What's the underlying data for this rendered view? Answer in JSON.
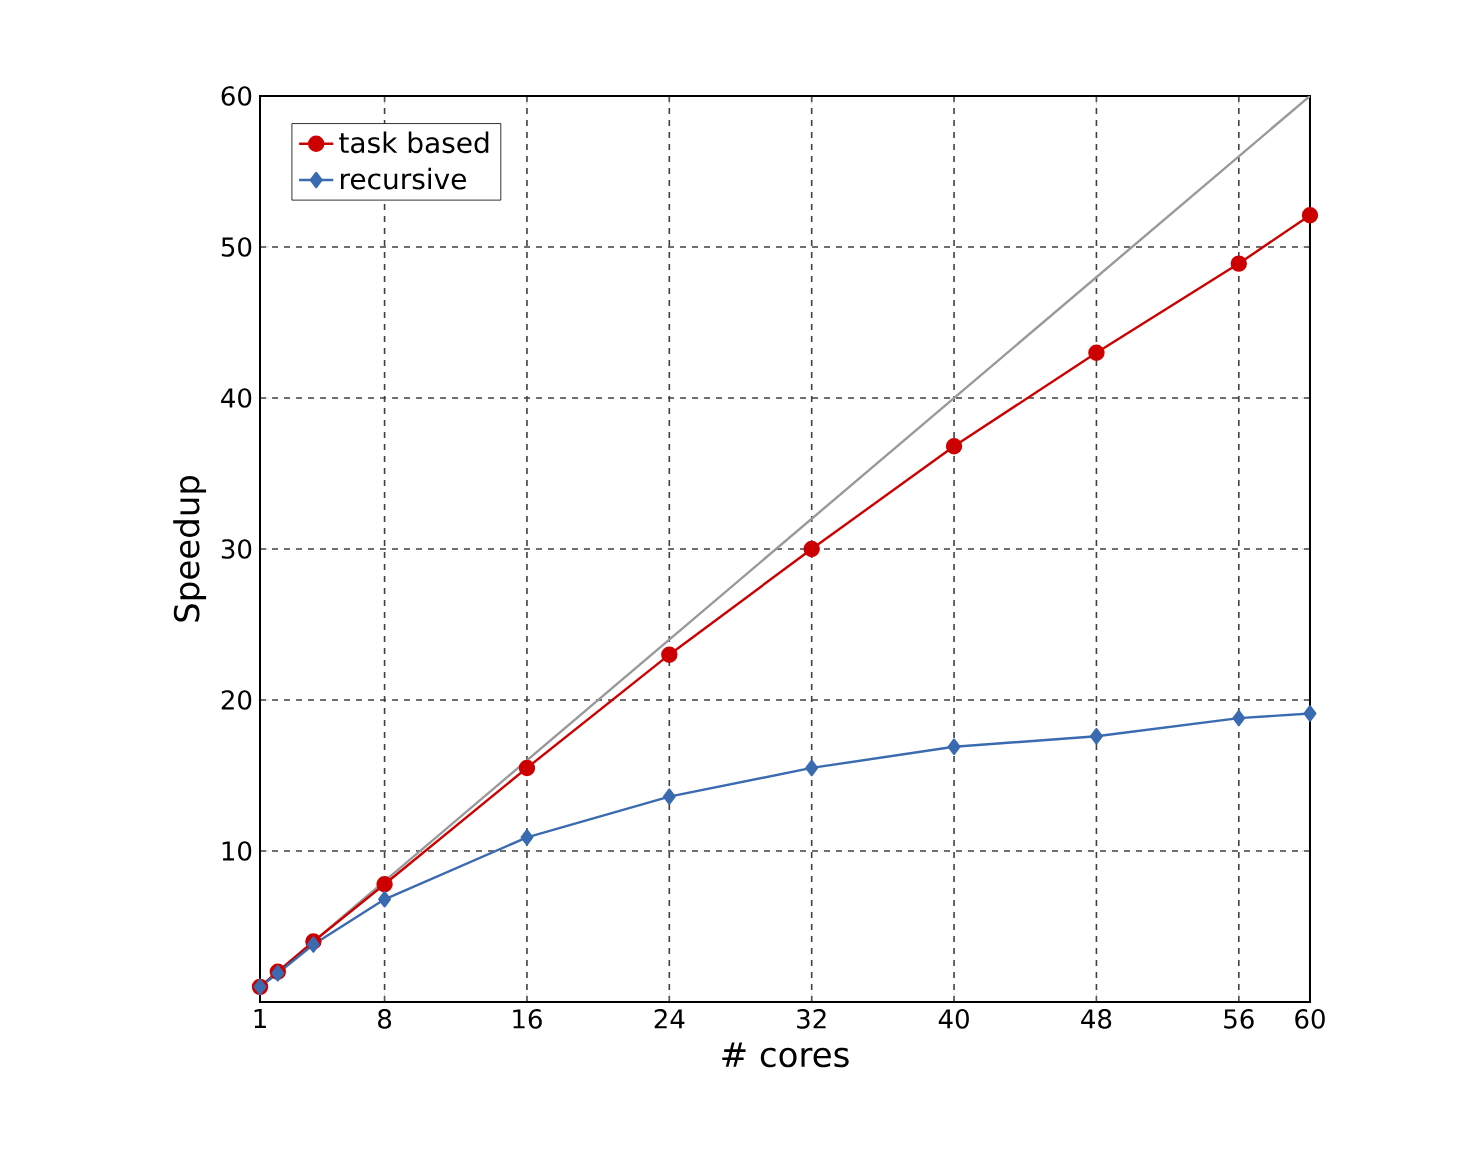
{
  "chart_data": {
    "type": "line",
    "xlabel": "# cores",
    "ylabel": "Speedup",
    "xlim": [
      1,
      60
    ],
    "ylim": [
      0,
      60
    ],
    "xticks": [
      1,
      8,
      16,
      24,
      32,
      40,
      48,
      56,
      60
    ],
    "yticks": [
      {
        "value": 0,
        "label": null
      },
      10,
      20,
      30,
      40,
      50,
      60
    ],
    "grid": true,
    "legend": "top left",
    "series": [
      {
        "x": [
          1,
          60
        ],
        "values": [
          1,
          60
        ],
        "color": "#999999",
        "marker": "none"
      },
      {
        "name": "task based",
        "color": "#cc0000",
        "marker": "circle",
        "x": [
          1,
          2,
          4,
          8,
          16,
          24,
          32,
          40,
          48,
          56,
          60
        ],
        "values": [
          1,
          2,
          4,
          7.8,
          15.5,
          23,
          30,
          36.8,
          43,
          48.9,
          52.1
        ]
      },
      {
        "name": "recursive",
        "color": "#3a6bb0",
        "marker": "diamond",
        "x": [
          1,
          2,
          4,
          8,
          16,
          24,
          32,
          40,
          48,
          56,
          60
        ],
        "values": [
          1,
          1.9,
          3.8,
          6.8,
          10.9,
          13.6,
          15.5,
          16.9,
          17.6,
          18.8,
          19.1
        ]
      }
    ]
  }
}
